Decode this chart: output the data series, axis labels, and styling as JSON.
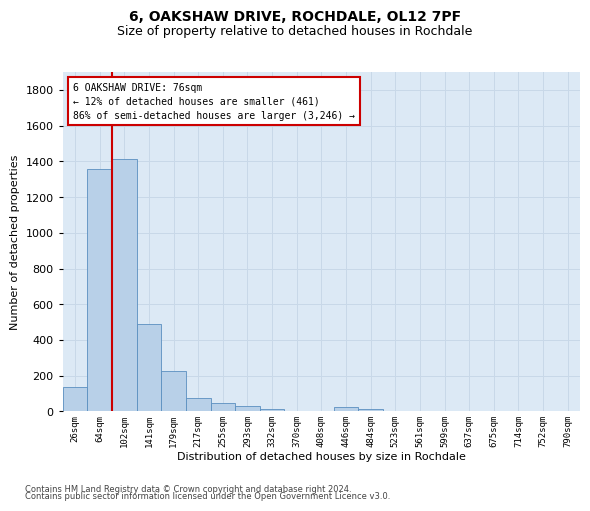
{
  "title1": "6, OAKSHAW DRIVE, ROCHDALE, OL12 7PF",
  "title2": "Size of property relative to detached houses in Rochdale",
  "xlabel": "Distribution of detached houses by size in Rochdale",
  "ylabel": "Number of detached properties",
  "bar_labels": [
    "26sqm",
    "64sqm",
    "102sqm",
    "141sqm",
    "179sqm",
    "217sqm",
    "255sqm",
    "293sqm",
    "332sqm",
    "370sqm",
    "408sqm",
    "446sqm",
    "484sqm",
    "523sqm",
    "561sqm",
    "599sqm",
    "637sqm",
    "675sqm",
    "714sqm",
    "752sqm",
    "790sqm"
  ],
  "bar_values": [
    135,
    1355,
    1415,
    490,
    225,
    75,
    45,
    28,
    15,
    0,
    0,
    22,
    15,
    0,
    0,
    0,
    0,
    0,
    0,
    0,
    0
  ],
  "bar_color": "#b8d0e8",
  "bar_edge_color": "#5a8fc0",
  "annotation_text": "6 OAKSHAW DRIVE: 76sqm\n← 12% of detached houses are smaller (461)\n86% of semi-detached houses are larger (3,246) →",
  "annotation_box_color": "#ffffff",
  "annotation_box_edge_color": "#cc0000",
  "property_line_color": "#cc0000",
  "grid_color": "#c8d8e8",
  "plot_background": "#dce9f5",
  "footer1": "Contains HM Land Registry data © Crown copyright and database right 2024.",
  "footer2": "Contains public sector information licensed under the Open Government Licence v3.0.",
  "ylim": [
    0,
    1900
  ],
  "yticks": [
    0,
    200,
    400,
    600,
    800,
    1000,
    1200,
    1400,
    1600,
    1800
  ],
  "title1_fontsize": 10,
  "title2_fontsize": 9,
  "ylabel_fontsize": 8,
  "xlabel_fontsize": 8,
  "annotation_fontsize": 7,
  "footer_fontsize": 6
}
